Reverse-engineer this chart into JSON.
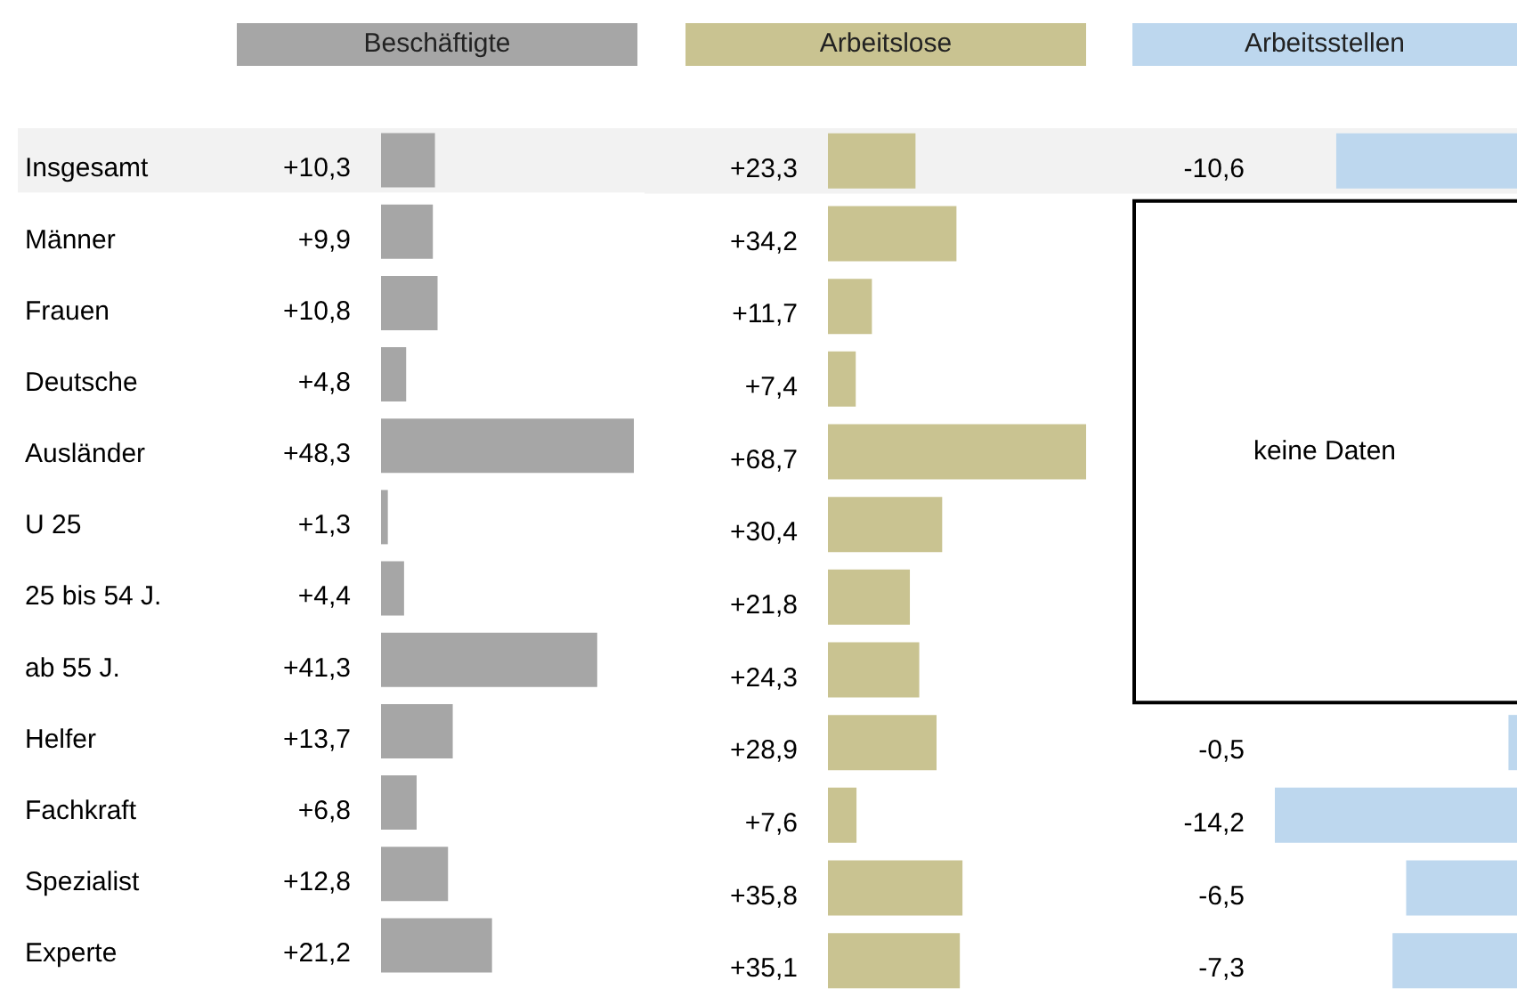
{
  "chart_data": [
    {
      "type": "bar",
      "orientation": "horizontal",
      "title": "Beschäftigte",
      "categories": [
        "Insgesamt",
        "Männer",
        "Frauen",
        "Deutsche",
        "Ausländer",
        "U 25",
        "25 bis 54 J.",
        "ab 55 J.",
        "Helfer",
        "Fachkraft",
        "Spezialist",
        "Experte"
      ],
      "series": [
        {
          "color": "#a6a6a6",
          "values": [
            10.3,
            9.9,
            10.8,
            4.8,
            48.3,
            1.3,
            4.4,
            41.3,
            13.7,
            6.8,
            12.8,
            21.2
          ],
          "value_labels": [
            "+10,3",
            "+9,9",
            "+10,8",
            "+4,8",
            "+48,3",
            "+1,3",
            "+4,4",
            "+41,3",
            "+13,7",
            "+6,8",
            "+12,8",
            "+21,2"
          ]
        }
      ],
      "xlim": [
        0,
        48.3
      ],
      "tick_labels": "y",
      "bands": [
        {
          "axis": "y",
          "from": "Insgesamt",
          "to": "Insgesamt",
          "color": "#f2f2f2"
        }
      ]
    },
    {
      "type": "bar",
      "orientation": "horizontal",
      "title": "Arbeitslose",
      "categories": [
        "Insgesamt",
        "Männer",
        "Frauen",
        "Deutsche",
        "Ausländer",
        "U 25",
        "25 bis 54 J.",
        "ab 55 J.",
        "Helfer",
        "Fachkraft",
        "Spezialist",
        "Experte"
      ],
      "series": [
        {
          "color": "#c9c391",
          "values": [
            23.3,
            34.2,
            11.7,
            7.4,
            68.7,
            30.4,
            21.8,
            24.3,
            28.9,
            7.6,
            35.8,
            35.1
          ],
          "value_labels": [
            "+23,3",
            "+34,2",
            "+11,7",
            "+7,4",
            "+68,7",
            "+30,4",
            "+21,8",
            "+24,3",
            "+28,9",
            "+7,6",
            "+35,8",
            "+35,1"
          ]
        }
      ],
      "xlim": [
        0,
        68.7
      ],
      "tick_labels": false,
      "bands": [
        {
          "axis": "y",
          "from": "Insgesamt",
          "to": "Insgesamt",
          "color": "#f2f2f2"
        }
      ]
    },
    {
      "type": "bar",
      "orientation": "horizontal",
      "title": "Arbeitsstellen",
      "categories": [
        "Insgesamt",
        "Männer",
        "Frauen",
        "Deutsche",
        "Ausländer",
        "U 25",
        "25 bis 54 J.",
        "ab 55 J.",
        "Helfer",
        "Fachkraft",
        "Spezialist",
        "Experte"
      ],
      "series": [
        {
          "color": "#bdd7ee",
          "values": [
            -10.6,
            null,
            null,
            null,
            null,
            null,
            null,
            null,
            -0.5,
            -14.2,
            -6.5,
            -7.3
          ],
          "value_labels": [
            "-10,6",
            null,
            null,
            null,
            null,
            null,
            null,
            null,
            "-0,5",
            "-14,2",
            "-6,5",
            "-7,3"
          ]
        }
      ],
      "xlim": [
        -14.2,
        0
      ],
      "tick_labels": false,
      "annotations": [
        "keine Daten"
      ],
      "bands": [
        {
          "axis": "y",
          "from": "Insgesamt",
          "to": "Insgesamt",
          "color": "#f2f2f2"
        }
      ]
    }
  ]
}
